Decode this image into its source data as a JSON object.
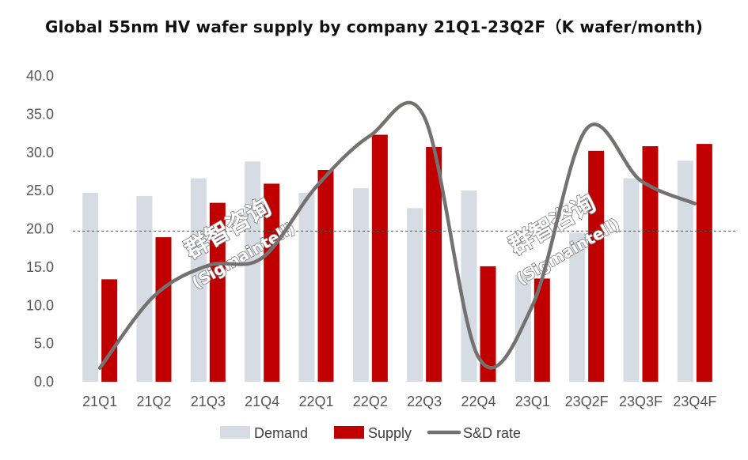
{
  "chart_data": {
    "type": "bar",
    "title": "Global 55nm HV wafer supply by company 21Q1-23Q2F（K wafer/month)",
    "categories": [
      "21Q1",
      "21Q2",
      "21Q3",
      "21Q4",
      "22Q1",
      "22Q2",
      "22Q3",
      "22Q4",
      "23Q1",
      "23Q2F",
      "23Q3F",
      "23Q4F"
    ],
    "series": [
      {
        "name": "Demand",
        "kind": "bar",
        "color": "#d6dce4",
        "values": [
          24.7,
          24.3,
          26.6,
          28.8,
          24.7,
          25.3,
          22.7,
          25.0,
          14.0,
          19.5,
          26.6,
          28.9
        ]
      },
      {
        "name": "Supply",
        "kind": "bar",
        "color": "#c00000",
        "values": [
          13.4,
          18.9,
          23.4,
          25.9,
          27.7,
          32.3,
          30.7,
          15.1,
          13.5,
          30.2,
          30.8,
          31.1
        ]
      },
      {
        "name": "S&D rate",
        "kind": "line",
        "color": "#767171",
        "values": [
          1.8,
          11.2,
          15.2,
          16.2,
          25.5,
          32.2,
          34.6,
          3.2,
          10.0,
          33.1,
          26.3,
          23.3
        ]
      }
    ],
    "ylim": [
      0,
      40
    ],
    "yticks": [
      "0.0",
      "5.0",
      "10.0",
      "15.0",
      "20.0",
      "25.0",
      "30.0",
      "35.0",
      "40.0"
    ],
    "reference_line": 19.7,
    "grid": false,
    "legend_position": "bottom"
  },
  "watermark": {
    "cjk": "群智咨询",
    "latin": "(Sigmaintell)"
  }
}
